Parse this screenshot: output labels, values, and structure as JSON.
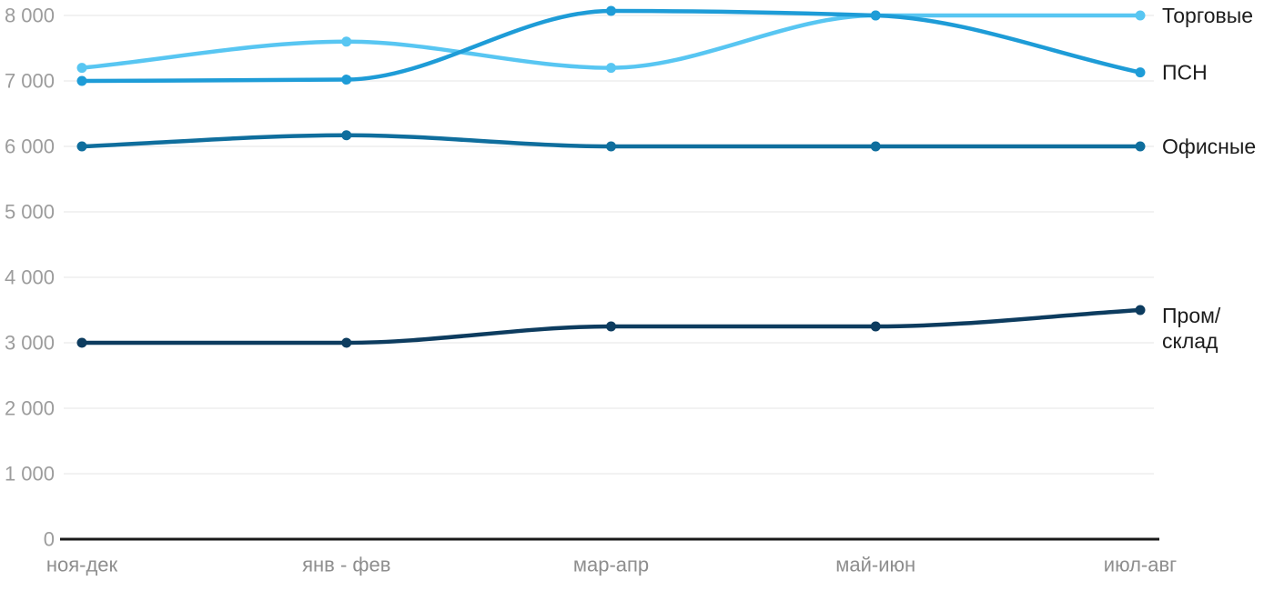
{
  "chart_data": {
    "type": "line",
    "title": "",
    "xlabel": "",
    "ylabel": "",
    "categories": [
      "ноя-дек",
      "янв - фев",
      "мар-апр",
      "май-июн",
      "июл-авг"
    ],
    "series": [
      {
        "name": "Торговые",
        "label_lines": [
          "Торговые"
        ],
        "color": "#58C6F2",
        "values": [
          7200,
          7600,
          7200,
          8000,
          8000
        ]
      },
      {
        "name": "ПСН",
        "label_lines": [
          "ПСН"
        ],
        "color": "#1E9CD7",
        "values": [
          7000,
          7020,
          8070,
          8000,
          7130
        ]
      },
      {
        "name": "Офисные",
        "label_lines": [
          "Офисные"
        ],
        "color": "#0F6E9D",
        "values": [
          6000,
          6170,
          6000,
          6000,
          6000
        ]
      },
      {
        "name": "Пром/склад",
        "label_lines": [
          "Пром/",
          "склад"
        ],
        "color": "#0D3C5F",
        "values": [
          3000,
          3000,
          3250,
          3250,
          3500
        ]
      }
    ],
    "ylim": [
      0,
      8000
    ],
    "ytick_step": 1000,
    "ytick_labels": [
      "0",
      "1 000",
      "2 000",
      "3 000",
      "4 000",
      "5 000",
      "6 000",
      "7 000",
      "8 000"
    ],
    "grid": true,
    "legend_position": "right-of-line-end",
    "curve": "smooth"
  },
  "colors": {
    "gridline": "#E5E5E5",
    "axis_line": "#1A1A1A",
    "y_tick_label": "#9C9C9C",
    "x_tick_label": "#8E8E8E",
    "series_label": "#1C1C1C",
    "background": "#FFFFFF"
  }
}
